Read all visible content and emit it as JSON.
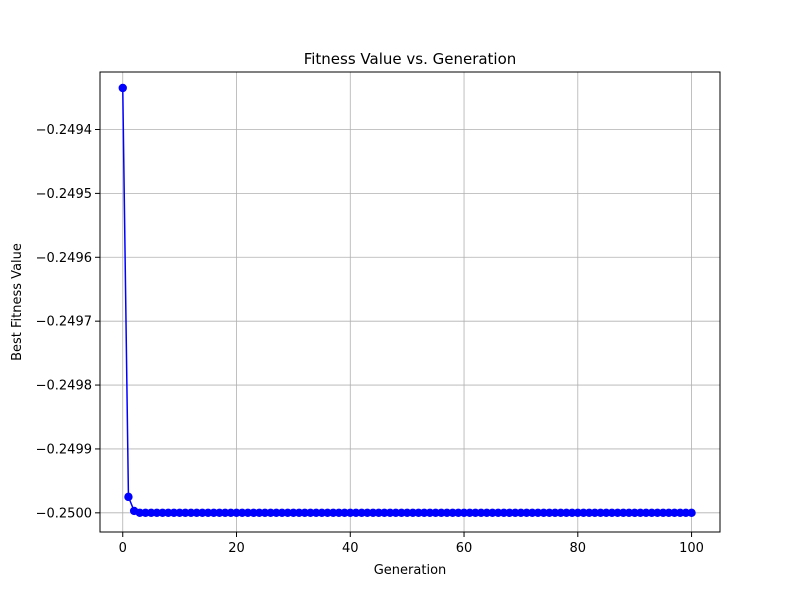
{
  "chart_data": {
    "type": "line",
    "title": "Fitness Value vs. Generation",
    "xlabel": "Generation",
    "ylabel": "Best Fitness Value",
    "xlim": [
      -4,
      105
    ],
    "ylim": [
      -0.25003,
      -0.24931
    ],
    "xticks": [
      0,
      20,
      40,
      60,
      80,
      100
    ],
    "xtick_labels": [
      "0",
      "20",
      "40",
      "60",
      "80",
      "100"
    ],
    "yticks": [
      -0.2494,
      -0.2495,
      -0.2496,
      -0.2497,
      -0.2498,
      -0.2499,
      -0.25
    ],
    "ytick_labels": [
      "−0.2494",
      "−0.2495",
      "−0.2496",
      "−0.2497",
      "−0.2498",
      "−0.2499",
      "−0.2500"
    ],
    "grid": true,
    "series": [
      {
        "color": "#0000ff",
        "marker": "circle",
        "x_start": 0,
        "x_end": 100,
        "values": [
          -0.249335,
          -0.249975,
          -0.249997,
          -0.25,
          -0.25,
          -0.25,
          -0.25,
          -0.25,
          -0.25,
          -0.25,
          -0.25,
          -0.25,
          -0.25,
          -0.25,
          -0.25,
          -0.25,
          -0.25,
          -0.25,
          -0.25,
          -0.25,
          -0.25,
          -0.25,
          -0.25,
          -0.25,
          -0.25,
          -0.25,
          -0.25,
          -0.25,
          -0.25,
          -0.25,
          -0.25,
          -0.25,
          -0.25,
          -0.25,
          -0.25,
          -0.25,
          -0.25,
          -0.25,
          -0.25,
          -0.25,
          -0.25,
          -0.25,
          -0.25,
          -0.25,
          -0.25,
          -0.25,
          -0.25,
          -0.25,
          -0.25,
          -0.25,
          -0.25,
          -0.25,
          -0.25,
          -0.25,
          -0.25,
          -0.25,
          -0.25,
          -0.25,
          -0.25,
          -0.25,
          -0.25,
          -0.25,
          -0.25,
          -0.25,
          -0.25,
          -0.25,
          -0.25,
          -0.25,
          -0.25,
          -0.25,
          -0.25,
          -0.25,
          -0.25,
          -0.25,
          -0.25,
          -0.25,
          -0.25,
          -0.25,
          -0.25,
          -0.25,
          -0.25,
          -0.25,
          -0.25,
          -0.25,
          -0.25,
          -0.25,
          -0.25,
          -0.25,
          -0.25,
          -0.25,
          -0.25,
          -0.25,
          -0.25,
          -0.25,
          -0.25,
          -0.25,
          -0.25,
          -0.25,
          -0.25,
          -0.25,
          -0.25
        ]
      }
    ]
  }
}
